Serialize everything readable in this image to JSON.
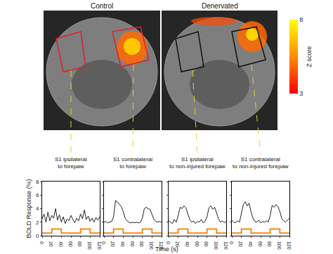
{
  "images": [
    {
      "title": "Control"
    },
    {
      "title": "Denervated"
    }
  ],
  "colorbar": {
    "title": "Z score",
    "range": [
      3,
      8
    ],
    "ticks": [
      3,
      8
    ],
    "colors": [
      "#ff0000",
      "#ff8c00",
      "#ffff00"
    ]
  },
  "xlabel": "Time (s)",
  "chart_data": [
    {
      "type": "line",
      "title": "S1 ipsilateral to forepaw",
      "ylabel": "BOLD Response (%)",
      "x": [
        0,
        4,
        8,
        12,
        16,
        20,
        24,
        28,
        32,
        36,
        40,
        44,
        48,
        52,
        56,
        60,
        64,
        68,
        72,
        76,
        80,
        84,
        88,
        92,
        96,
        100,
        104,
        108,
        112,
        116,
        120
      ],
      "xlim": [
        0,
        120
      ],
      "xticks": [
        0,
        20,
        40,
        60,
        80,
        100,
        120
      ],
      "ylim": [
        0,
        8
      ],
      "yticks": [
        0,
        2,
        4,
        6,
        8
      ],
      "series": [
        {
          "color": "#222222",
          "line_style": "solid",
          "values": [
            2.5,
            3.2,
            2.0,
            3.5,
            2.2,
            3.0,
            2.6,
            4.0,
            2.3,
            3.1,
            2.0,
            2.8,
            1.8,
            2.5,
            2.2,
            3.0,
            2.4,
            1.9,
            2.6,
            2.2,
            3.2,
            2.5,
            3.8,
            2.4,
            2.9,
            2.1,
            2.6,
            2.0,
            2.7,
            2.3,
            2.8
          ]
        },
        {
          "color": "#f28c1e",
          "line_style": "step",
          "x": [
            0,
            20,
            40,
            80,
            100,
            120
          ],
          "values": [
            0.4,
            1.0,
            0.4,
            1.0,
            0.4,
            0.4
          ]
        }
      ]
    },
    {
      "type": "line",
      "title": "S1 contralateral to forepaw",
      "tick_labels": "x",
      "x": [
        0,
        4,
        8,
        12,
        16,
        20,
        24,
        28,
        32,
        36,
        40,
        44,
        48,
        52,
        56,
        60,
        64,
        68,
        72,
        76,
        80,
        84,
        88,
        92,
        96,
        100,
        104,
        108,
        112,
        116,
        120
      ],
      "xlim": [
        0,
        120
      ],
      "xticks": [
        0,
        20,
        40,
        60,
        80,
        100,
        120
      ],
      "ylim": [
        0,
        8
      ],
      "yticks": [
        0,
        2,
        4,
        6,
        8
      ],
      "series": [
        {
          "color": "#222222",
          "line_style": "solid",
          "values": [
            2.0,
            2.1,
            1.9,
            2.0,
            2.1,
            2.8,
            5.2,
            5.0,
            4.6,
            4.3,
            3.6,
            2.6,
            2.2,
            2.0,
            1.9,
            2.0,
            1.9,
            2.0,
            1.9,
            2.0,
            2.6,
            4.0,
            4.2,
            4.0,
            3.9,
            3.2,
            2.4,
            2.1,
            2.0,
            2.1,
            2.0
          ]
        },
        {
          "color": "#f28c1e",
          "line_style": "step",
          "x": [
            0,
            20,
            40,
            80,
            100,
            120
          ],
          "values": [
            0.4,
            1.0,
            0.4,
            1.0,
            0.4,
            0.4
          ]
        }
      ]
    },
    {
      "type": "line",
      "title": "S1 ipsilateral to non-injured forepaw",
      "tick_labels": "x",
      "x": [
        0,
        4,
        8,
        12,
        16,
        20,
        24,
        28,
        32,
        36,
        40,
        44,
        48,
        52,
        56,
        60,
        64,
        68,
        72,
        76,
        80,
        84,
        88,
        92,
        96,
        100,
        104,
        108,
        112,
        116,
        120
      ],
      "xlim": [
        0,
        120
      ],
      "xticks": [
        0,
        20,
        40,
        60,
        80,
        100,
        120
      ],
      "ylim": [
        0,
        8
      ],
      "yticks": [
        0,
        2,
        4,
        6,
        8
      ],
      "series": [
        {
          "color": "#222222",
          "line_style": "solid",
          "values": [
            2.2,
            2.0,
            1.8,
            2.4,
            2.0,
            3.0,
            4.2,
            4.0,
            4.4,
            4.1,
            3.2,
            2.4,
            2.0,
            2.2,
            1.8,
            2.1,
            2.0,
            2.4,
            1.9,
            2.1,
            2.8,
            4.1,
            4.4,
            3.9,
            4.2,
            3.4,
            2.5,
            2.0,
            2.2,
            1.9,
            2.1
          ]
        },
        {
          "color": "#f28c1e",
          "line_style": "step",
          "x": [
            0,
            20,
            40,
            80,
            100,
            120
          ],
          "values": [
            0.4,
            1.0,
            0.4,
            1.0,
            0.4,
            0.4
          ]
        }
      ]
    },
    {
      "type": "line",
      "title": "S1 contralateral to non-injured forepaw",
      "tick_labels": "x",
      "x": [
        0,
        4,
        8,
        12,
        16,
        20,
        24,
        28,
        32,
        36,
        40,
        44,
        48,
        52,
        56,
        60,
        64,
        68,
        72,
        76,
        80,
        84,
        88,
        92,
        96,
        100,
        104,
        108,
        112,
        116,
        120
      ],
      "xlim": [
        0,
        120
      ],
      "xticks": [
        0,
        20,
        40,
        60,
        80,
        100,
        120
      ],
      "ylim": [
        0,
        8
      ],
      "yticks": [
        0,
        2,
        4,
        6,
        8
      ],
      "series": [
        {
          "color": "#222222",
          "line_style": "solid",
          "values": [
            2.3,
            2.0,
            1.9,
            2.2,
            2.0,
            3.2,
            4.6,
            5.0,
            4.4,
            4.8,
            3.5,
            2.6,
            2.1,
            2.0,
            2.3,
            1.9,
            2.1,
            2.0,
            2.2,
            2.0,
            3.0,
            4.5,
            4.2,
            4.6,
            4.3,
            3.6,
            2.5,
            2.2,
            2.0,
            2.3,
            2.6
          ]
        },
        {
          "color": "#f28c1e",
          "line_style": "step",
          "x": [
            0,
            20,
            40,
            80,
            100,
            120
          ],
          "values": [
            0.4,
            1.0,
            0.4,
            1.0,
            0.4,
            0.4
          ]
        }
      ]
    }
  ]
}
